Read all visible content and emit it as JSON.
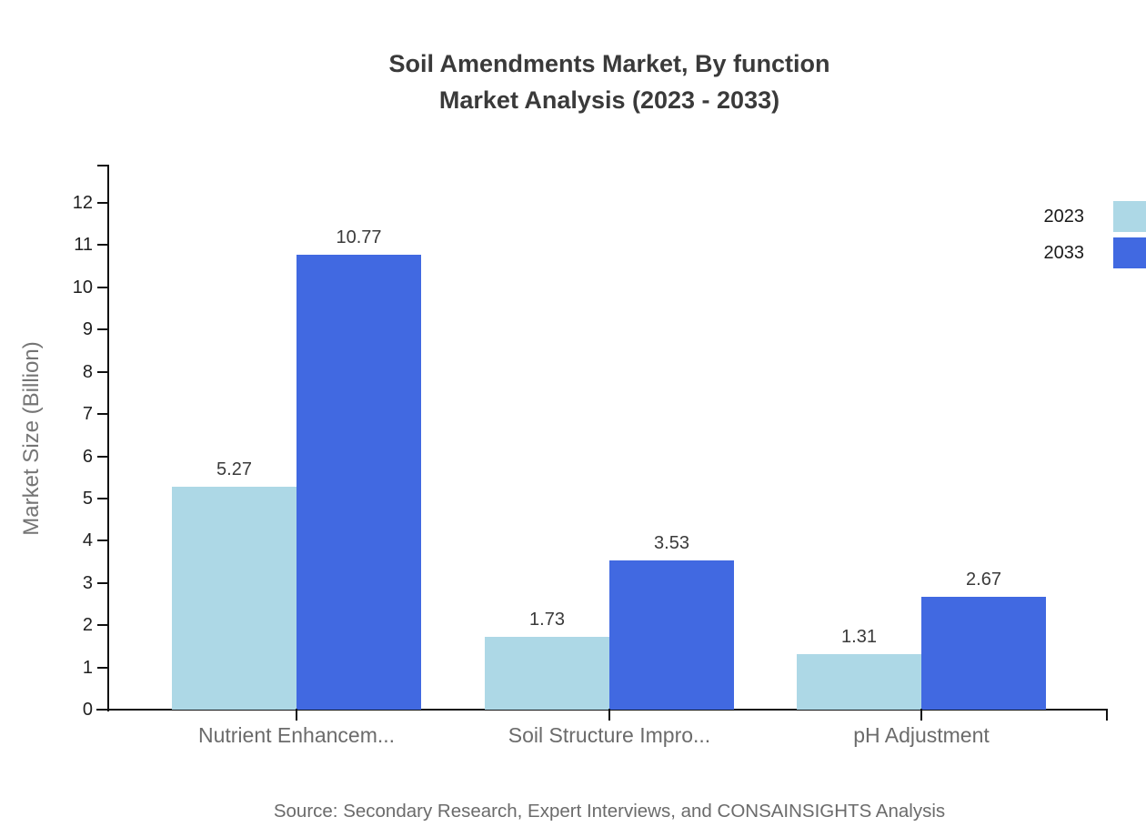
{
  "chart": {
    "title_line1": "Soil Amendments Market, By function",
    "title_line2": "Market Analysis (2023 - 2033)",
    "ylabel": "Market Size (Billion)",
    "source": "Source: Secondary Research, Expert Interviews, and CONSAINSIGHTS Analysis"
  },
  "chart_data": {
    "type": "bar",
    "title": "Soil Amendments Market, By function Market Analysis (2023 - 2033)",
    "categories": [
      "Nutrient Enhancem...",
      "Soil Structure Impro...",
      "pH Adjustment"
    ],
    "series": [
      {
        "name": "2023",
        "color": "#ADD8E6",
        "values": [
          5.27,
          1.73,
          1.31
        ]
      },
      {
        "name": "2033",
        "color": "#4169E1",
        "values": [
          10.77,
          3.53,
          2.67
        ]
      }
    ],
    "value_labels": [
      "5.27",
      "10.77",
      "1.73",
      "3.53",
      "1.31",
      "2.67"
    ],
    "xlabel": "",
    "ylabel": "Market Size (Billion)",
    "ylim": [
      0,
      12
    ],
    "yticks": [
      0,
      1,
      2,
      3,
      4,
      5,
      6,
      7,
      8,
      9,
      10,
      11,
      12
    ],
    "grid": false,
    "legend_position": "top-right",
    "bar_orientation": "vertical"
  },
  "legend": {
    "items": [
      {
        "label": "2023",
        "color": "#ADD8E6"
      },
      {
        "label": "2033",
        "color": "#4169E1"
      }
    ]
  },
  "colors": {
    "series_2023": "#ADD8E6",
    "series_2033": "#4169E1",
    "axis": "#111111",
    "title_text": "#3a3a3a",
    "muted_text": "#6b6b6b"
  }
}
